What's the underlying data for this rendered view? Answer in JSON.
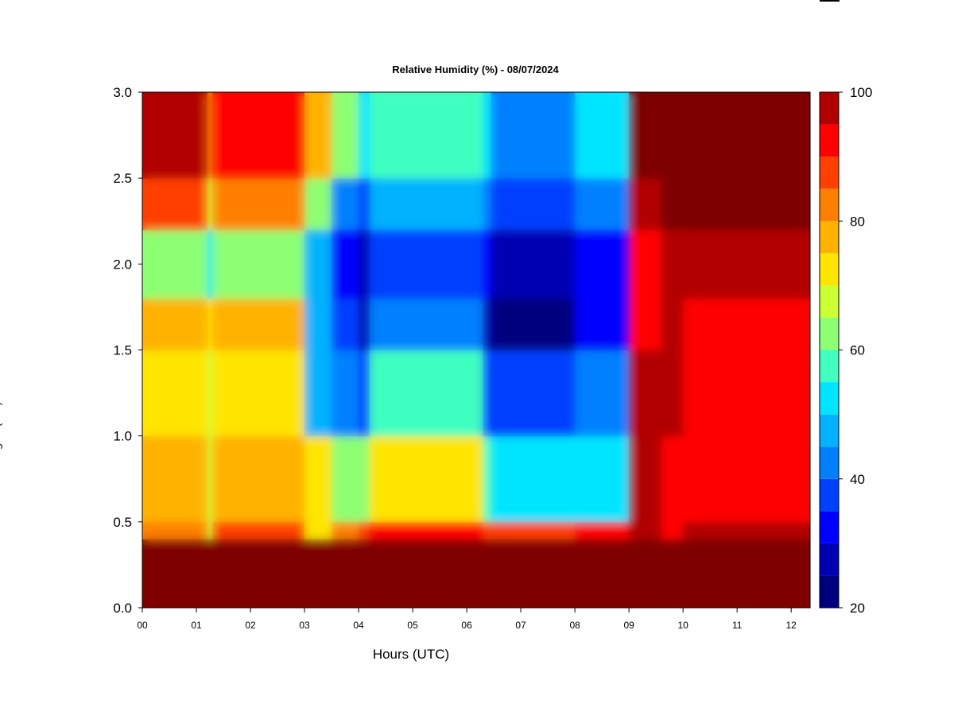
{
  "chart_data": {
    "type": "heatmap",
    "title": "Relative Humidity (%) - 08/07/2024",
    "xlabel": "Hours (UTC)",
    "ylabel": "",
    "xlim": [
      0,
      12.35
    ],
    "ylim": [
      0,
      3.0
    ],
    "x_ticks": [
      {
        "value": 0,
        "label": "00"
      },
      {
        "value": 1,
        "label": "01"
      },
      {
        "value": 2,
        "label": "02"
      },
      {
        "value": 3,
        "label": "03"
      },
      {
        "value": 4,
        "label": "04"
      },
      {
        "value": 5,
        "label": "05"
      },
      {
        "value": 6,
        "label": "06"
      },
      {
        "value": 7,
        "label": "07"
      },
      {
        "value": 8,
        "label": "08"
      },
      {
        "value": 9,
        "label": "09"
      },
      {
        "value": 10,
        "label": "10"
      },
      {
        "value": 11,
        "label": "11"
      },
      {
        "value": 12,
        "label": "12"
      }
    ],
    "y_ticks": [
      {
        "value": 0.0,
        "label": "0.0"
      },
      {
        "value": 0.5,
        "label": "0.5"
      },
      {
        "value": 1.0,
        "label": "1.0"
      },
      {
        "value": 1.5,
        "label": "1.5"
      },
      {
        "value": 2.0,
        "label": "2.0"
      },
      {
        "value": 2.5,
        "label": "2.5"
      },
      {
        "value": 3.0,
        "label": "3.0"
      }
    ],
    "colorbar": {
      "levels": [
        20,
        25,
        30,
        35,
        40,
        45,
        50,
        55,
        60,
        65,
        70,
        75,
        80,
        85,
        90,
        95,
        100
      ],
      "colors": [
        "#00007f",
        "#0000b2",
        "#0000ff",
        "#0040ff",
        "#0080ff",
        "#00b2ff",
        "#00e5ff",
        "#40ffbf",
        "#8cff73",
        "#ccff33",
        "#ffe500",
        "#ffb200",
        "#ff8000",
        "#ff4000",
        "#ff0000",
        "#b20000"
      ],
      "tick_labels": [
        {
          "value": 20,
          "label": "20"
        },
        {
          "value": 40,
          "label": "40"
        },
        {
          "value": 60,
          "label": "60"
        },
        {
          "value": 80,
          "label": "80"
        },
        {
          "value": 100,
          "label": "100"
        }
      ]
    },
    "left_edge_glyphs": [
      ")",
      "(",
      "g"
    ],
    "x_breaks_hours": [
      0.0,
      1.2,
      1.3,
      3.0,
      3.5,
      4.0,
      4.2,
      6.3,
      6.45,
      8.0,
      9.0,
      9.6,
      10.0,
      12.35
    ],
    "y_breaks_km": [
      0,
      0.4,
      0.5,
      1.0,
      1.5,
      1.8,
      2.2,
      2.5,
      3.0
    ],
    "values": [
      [
        99,
        99,
        99,
        99,
        99,
        99,
        99,
        99,
        99,
        99,
        99,
        99,
        99
      ],
      [
        84,
        68,
        85,
        74,
        83,
        86,
        92,
        87,
        88,
        90,
        95,
        92,
        96
      ],
      [
        76,
        68,
        78,
        70,
        64,
        60,
        74,
        59,
        51,
        50,
        95,
        92,
        93
      ],
      [
        74,
        66,
        73,
        48,
        44,
        38,
        58,
        38,
        35,
        40,
        95,
        97,
        94
      ],
      [
        77,
        70,
        75,
        49,
        35,
        28,
        40,
        28,
        22,
        30,
        90,
        96,
        94
      ],
      [
        63,
        50,
        62,
        49,
        32,
        28,
        38,
        30,
        29,
        33,
        90,
        96,
        97
      ],
      [
        85,
        68,
        80,
        60,
        42,
        38,
        48,
        40,
        38,
        40,
        97,
        99,
        99
      ],
      [
        95,
        80,
        92,
        75,
        60,
        54,
        59,
        50,
        43,
        52,
        99,
        99,
        99
      ]
    ]
  }
}
